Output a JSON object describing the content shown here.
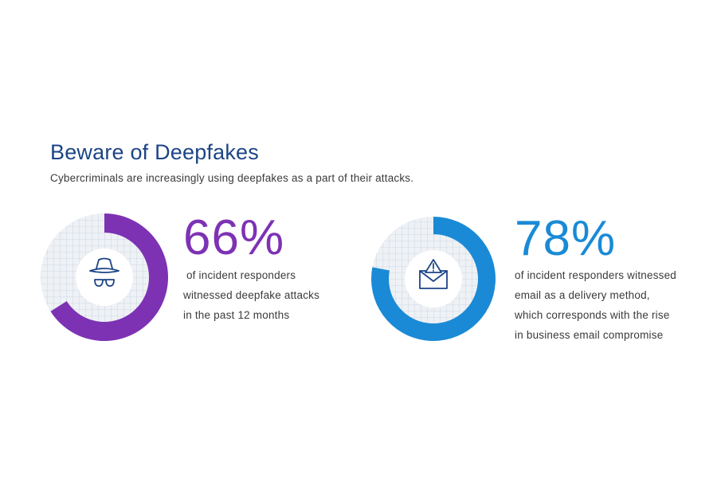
{
  "header": {
    "title": "Beware of Deepfakes",
    "subtitle": "Cybercriminals are increasingly using deepfakes as a part of their attacks."
  },
  "stats": [
    {
      "value_text": "66%",
      "lines": [
        " of incident responders",
        "witnessed deepfake attacks",
        "in the past 12 months"
      ],
      "color": "#7d32b4",
      "icon": "spy-icon"
    },
    {
      "value_text": "78%",
      "lines": [
        "of incident responders witnessed",
        "email as a delivery method,",
        "which corresponds with the rise",
        "in business email compromise"
      ],
      "color": "#1a8ad6",
      "icon": "email-warning-icon"
    }
  ],
  "chart_data": [
    {
      "type": "pie",
      "slices": [
        {
          "label": "witnessed deepfake attacks",
          "value": 66,
          "color": "#7d32b4"
        },
        {
          "label": "remainder",
          "value": 34,
          "color": "#e6eaef"
        }
      ]
    },
    {
      "type": "pie",
      "slices": [
        {
          "label": "email as a delivery method",
          "value": 78,
          "color": "#1a8ad6"
        },
        {
          "label": "remainder",
          "value": 22,
          "color": "#e6eaef"
        }
      ]
    }
  ]
}
